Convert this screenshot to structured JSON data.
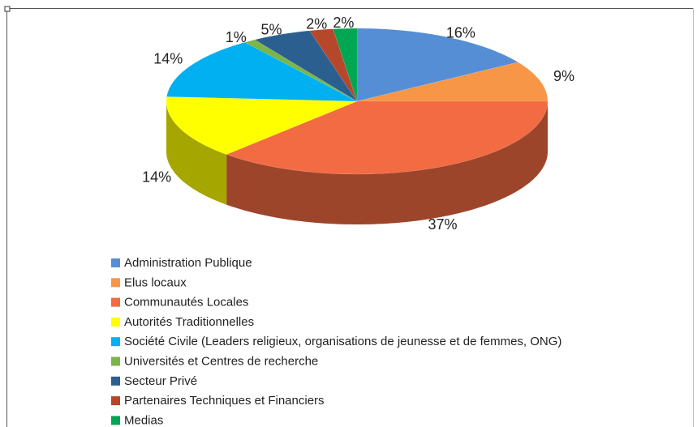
{
  "chart_data": {
    "type": "pie",
    "categories": [
      "Administration Publique",
      "Elus locaux",
      "Communautés Locales",
      "Autorités Traditionnelles",
      "Société Civile (Leaders religieux, organisations de jeunesse et de femmes, ONG)",
      "Universités et Centres de recherche",
      "Secteur Privé",
      "Partenaires Techniques et Financiers",
      "Medias"
    ],
    "values": [
      16,
      9,
      37,
      14,
      14,
      1,
      5,
      2,
      2
    ],
    "value_labels": [
      "16%",
      "9%",
      "37%",
      "14%",
      "14%",
      "1%",
      "5%",
      "2%",
      "2%"
    ],
    "colors": [
      "#558ed5",
      "#f79646",
      "#f26b43",
      "#ffff00",
      "#00b0f0",
      "#7ab648",
      "#2a5f8f",
      "#b7472a",
      "#00a651"
    ],
    "legend": "bottom"
  }
}
